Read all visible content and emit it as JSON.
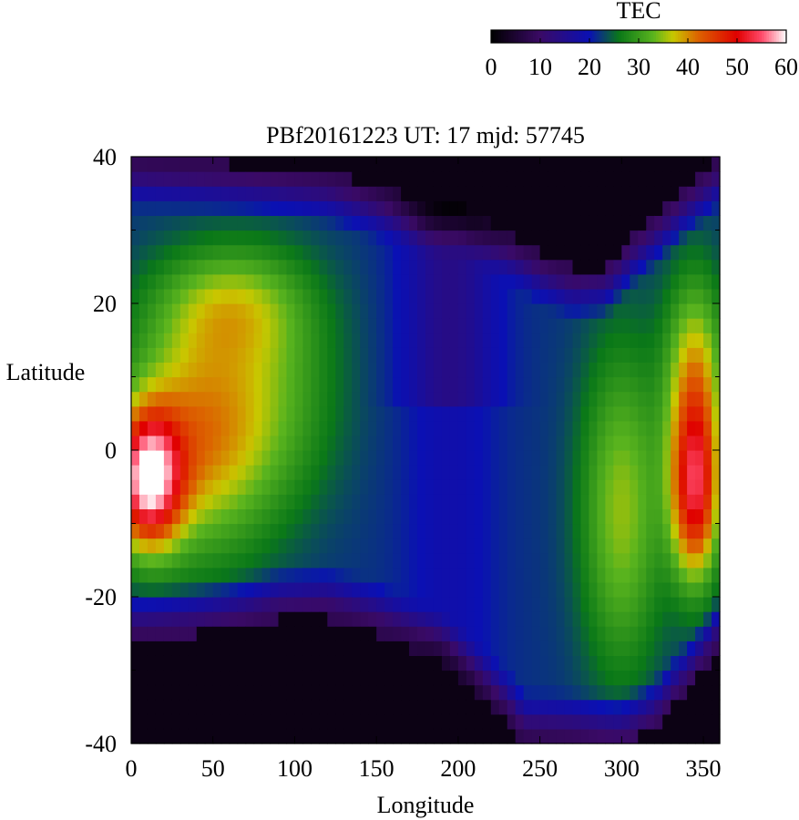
{
  "chart_data": {
    "type": "heatmap",
    "title": "PBf20161223  UT: 17  mjd: 57745",
    "xlabel": "Longitude",
    "ylabel": "Latitude",
    "xlim": [
      0,
      360
    ],
    "ylim": [
      -40,
      40
    ],
    "x_ticks": [
      "0",
      "50",
      "100",
      "150",
      "200",
      "250",
      "300",
      "350"
    ],
    "y_ticks": [
      "40",
      "20",
      "0",
      "-20",
      "-40"
    ],
    "grid": false,
    "colorbar": {
      "label": "TEC",
      "range": [
        0,
        60
      ],
      "ticks": [
        "0",
        "10",
        "20",
        "30",
        "40",
        "50",
        "60"
      ],
      "colors": [
        {
          "value": 0,
          "color": "#000000"
        },
        {
          "value": 10,
          "color": "#3a0a66"
        },
        {
          "value": 20,
          "color": "#0a10b4"
        },
        {
          "value": 26,
          "color": "#0a7818"
        },
        {
          "value": 33,
          "color": "#5ab41e"
        },
        {
          "value": 37,
          "color": "#c8c800"
        },
        {
          "value": 42,
          "color": "#dc6400"
        },
        {
          "value": 50,
          "color": "#e00000"
        },
        {
          "value": 55,
          "color": "#ff4a6a"
        },
        {
          "value": 60,
          "color": "#ffffff"
        }
      ]
    },
    "grid_resolution": {
      "lon_step": 5,
      "lat_step": 2
    },
    "features": {
      "night_lat_north_cutoff": [
        [
          0,
          40
        ],
        [
          60,
          39
        ],
        [
          120,
          38
        ],
        [
          180,
          34
        ],
        [
          200,
          34
        ],
        [
          230,
          30
        ],
        [
          250,
          27
        ],
        [
          270,
          25
        ],
        [
          290,
          25
        ],
        [
          310,
          30
        ],
        [
          340,
          36
        ],
        [
          360,
          40
        ]
      ],
      "night_lat_south_cutoff": [
        [
          0,
          -26
        ],
        [
          40,
          -25
        ],
        [
          70,
          -24
        ],
        [
          90,
          -23
        ],
        [
          120,
          -23
        ],
        [
          150,
          -25
        ],
        [
          170,
          -27
        ],
        [
          190,
          -29
        ],
        [
          210,
          -33
        ],
        [
          230,
          -37
        ],
        [
          240,
          -40
        ],
        [
          300,
          -40
        ],
        [
          320,
          -38
        ],
        [
          340,
          -33
        ],
        [
          360,
          -27
        ]
      ],
      "enhancements": [
        {
          "lon": 10,
          "lat": -4,
          "tec": 52,
          "sigma_lon": 20,
          "sigma_lat": 9
        },
        {
          "lon": 40,
          "lat": 2,
          "tec": 38,
          "sigma_lon": 45,
          "sigma_lat": 16
        },
        {
          "lon": 60,
          "lat": 20,
          "tec": 30,
          "sigma_lon": 45,
          "sigma_lat": 8
        },
        {
          "lon": 90,
          "lat": 8,
          "tec": 27,
          "sigma_lon": 40,
          "sigma_lat": 16
        },
        {
          "lon": 300,
          "lat": -8,
          "tec": 33,
          "sigma_lon": 25,
          "sigma_lat": 22
        },
        {
          "lon": 345,
          "lat": -6,
          "tec": 47,
          "sigma_lon": 15,
          "sigma_lat": 12
        },
        {
          "lon": 345,
          "lat": 10,
          "tec": 36,
          "sigma_lon": 18,
          "sigma_lat": 14
        }
      ]
    }
  }
}
